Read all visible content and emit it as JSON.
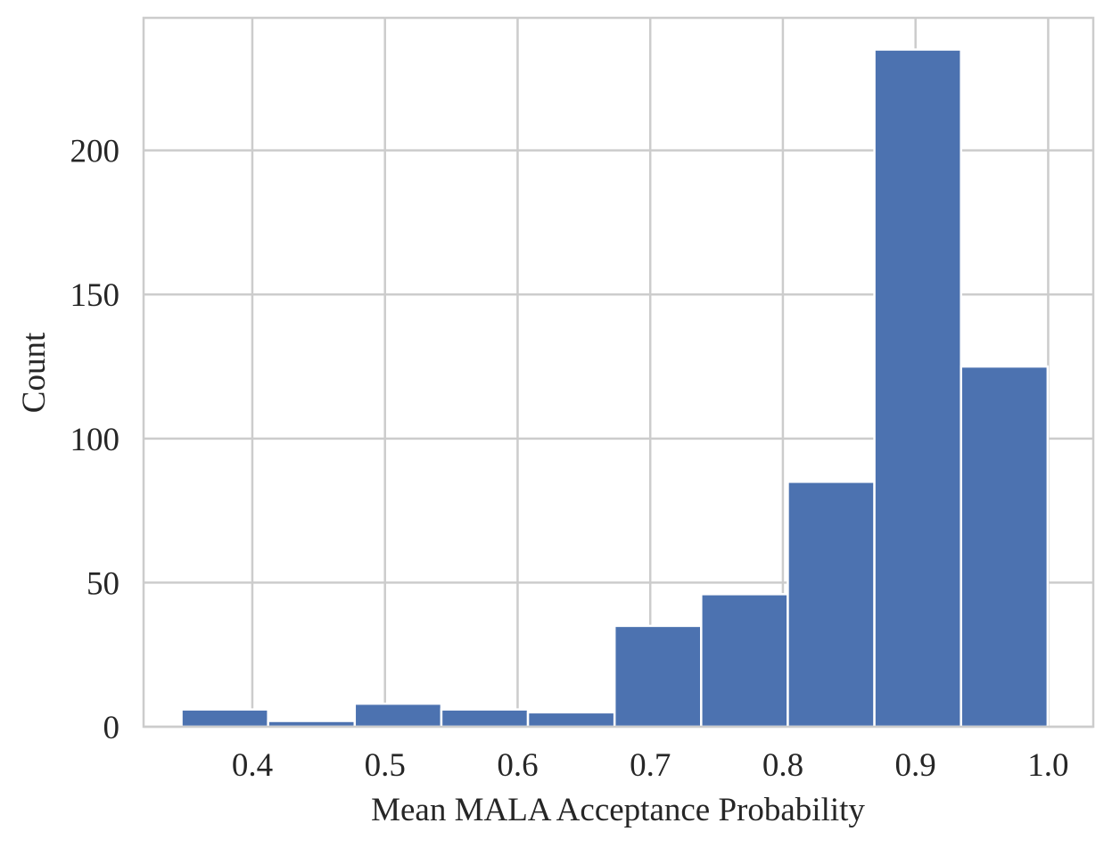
{
  "chart_data": {
    "type": "bar",
    "subtype": "histogram",
    "title": "",
    "xlabel": "Mean MALA Acceptance Probability",
    "ylabel": "Count",
    "xlim": [
      0.318,
      1.034
    ],
    "ylim": [
      0,
      246
    ],
    "xticks": [
      0.4,
      0.5,
      0.6,
      0.7,
      0.8,
      0.9,
      1.0
    ],
    "xtick_labels": [
      "0.4",
      "0.5",
      "0.6",
      "0.7",
      "0.8",
      "0.9",
      "1.0"
    ],
    "yticks": [
      0,
      50,
      100,
      150,
      200
    ],
    "ytick_labels": [
      "0",
      "50",
      "100",
      "150",
      "200"
    ],
    "bin_edges": [
      0.3466,
      0.4119,
      0.4772,
      0.5425,
      0.6078,
      0.6731,
      0.7384,
      0.8037,
      0.869,
      0.9343,
      0.9996
    ],
    "values": [
      6,
      2,
      8,
      6,
      5,
      35,
      46,
      85,
      235,
      125
    ],
    "grid": true,
    "colors": {
      "bar": "#4c72b0",
      "grid": "#cccccc",
      "text": "#262626"
    }
  }
}
